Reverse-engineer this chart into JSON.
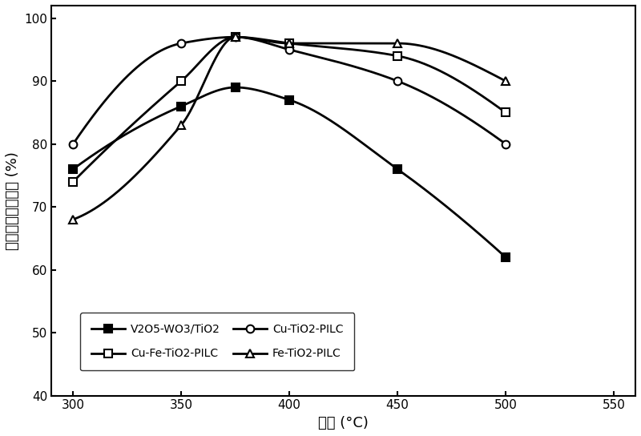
{
  "x": [
    300,
    350,
    375,
    400,
    450,
    500
  ],
  "series": {
    "V2O5-WO3/TiO2": {
      "y": [
        76,
        86,
        89,
        87,
        76,
        62
      ],
      "color": "#000000",
      "marker": "s",
      "markerfacecolor": "#000000",
      "markeredgecolor": "#000000",
      "linewidth": 2.0,
      "markersize": 7,
      "label": "V2O5-WO3/TiO2"
    },
    "Cu-Fe-TiO2-PILC": {
      "y": [
        74,
        90,
        97,
        96,
        94,
        85
      ],
      "color": "#000000",
      "marker": "s",
      "markerfacecolor": "#ffffff",
      "markeredgecolor": "#000000",
      "linewidth": 2.0,
      "markersize": 7,
      "label": "Cu-Fe-TiO2-PILC"
    },
    "Cu-TiO2-PILC": {
      "y": [
        80,
        96,
        97,
        95,
        90,
        80
      ],
      "color": "#000000",
      "marker": "o",
      "markerfacecolor": "#ffffff",
      "markeredgecolor": "#000000",
      "linewidth": 2.0,
      "markersize": 7,
      "label": "Cu-TiO2-PILC"
    },
    "Fe-TiO2-PILC": {
      "y": [
        68,
        83,
        97,
        96,
        96,
        90
      ],
      "color": "#000000",
      "marker": "^",
      "markerfacecolor": "#ffffff",
      "markeredgecolor": "#000000",
      "linewidth": 2.0,
      "markersize": 7,
      "label": "Fe-TiO2-PILC"
    }
  },
  "xlabel": "温度 (°C)",
  "ylabel": "一氧化氮的转化率 (%)",
  "xlim": [
    290,
    560
  ],
  "ylim": [
    40,
    102
  ],
  "xticks": [
    300,
    350,
    400,
    450,
    500,
    550
  ],
  "yticks": [
    40,
    50,
    60,
    70,
    80,
    90,
    100
  ],
  "legend_order": [
    "V2O5-WO3/TiO2",
    "Cu-Fe-TiO2-PILC",
    "Cu-TiO2-PILC",
    "Fe-TiO2-PILC"
  ],
  "background_color": "#ffffff"
}
